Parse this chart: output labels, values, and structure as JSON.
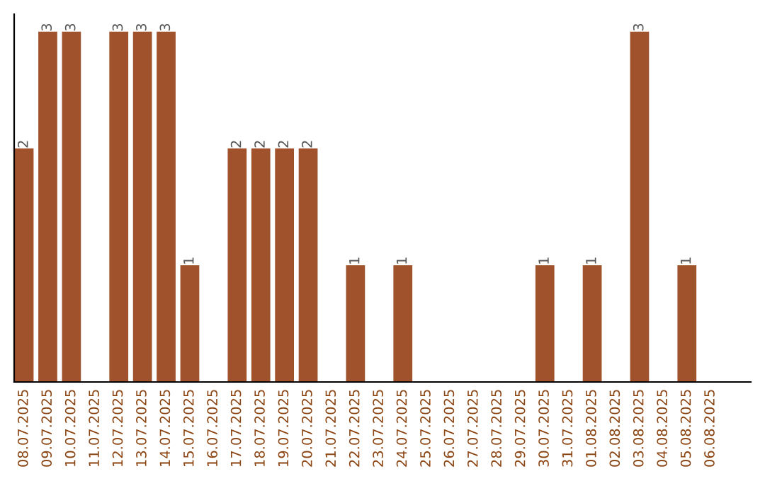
{
  "chart_data": {
    "type": "bar",
    "categories": [
      "08.07.2025",
      "09.07.2025",
      "10.07.2025",
      "11.07.2025",
      "12.07.2025",
      "13.07.2025",
      "14.07.2025",
      "15.07.2025",
      "16.07.2025",
      "17.07.2025",
      "18.07.2025",
      "19.07.2025",
      "20.07.2025",
      "21.07.2025",
      "22.07.2025",
      "23.07.2025",
      "24.07.2025",
      "25.07.2025",
      "26.07.2025",
      "27.07.2025",
      "28.07.2025",
      "29.07.2025",
      "30.07.2025",
      "31.07.2025",
      "01.08.2025",
      "02.08.2025",
      "03.08.2025",
      "04.08.2025",
      "05.08.2025",
      "06.08.2025"
    ],
    "values": [
      2,
      3,
      3,
      0,
      3,
      3,
      3,
      1,
      0,
      2,
      2,
      2,
      2,
      0,
      1,
      0,
      1,
      0,
      0,
      0,
      0,
      0,
      1,
      0,
      1,
      0,
      3,
      0,
      1,
      0
    ],
    "value_labels": [
      "2",
      "3",
      "3",
      null,
      "3",
      "3",
      "3",
      "1",
      null,
      "2",
      "2",
      "2",
      "2",
      null,
      "1",
      null,
      "1",
      null,
      null,
      null,
      null,
      null,
      "1",
      null,
      "1",
      null,
      "3",
      null,
      "1",
      null
    ],
    "color": "#a0522d",
    "tick_labels": "x",
    "grid": false,
    "legend": false
  }
}
